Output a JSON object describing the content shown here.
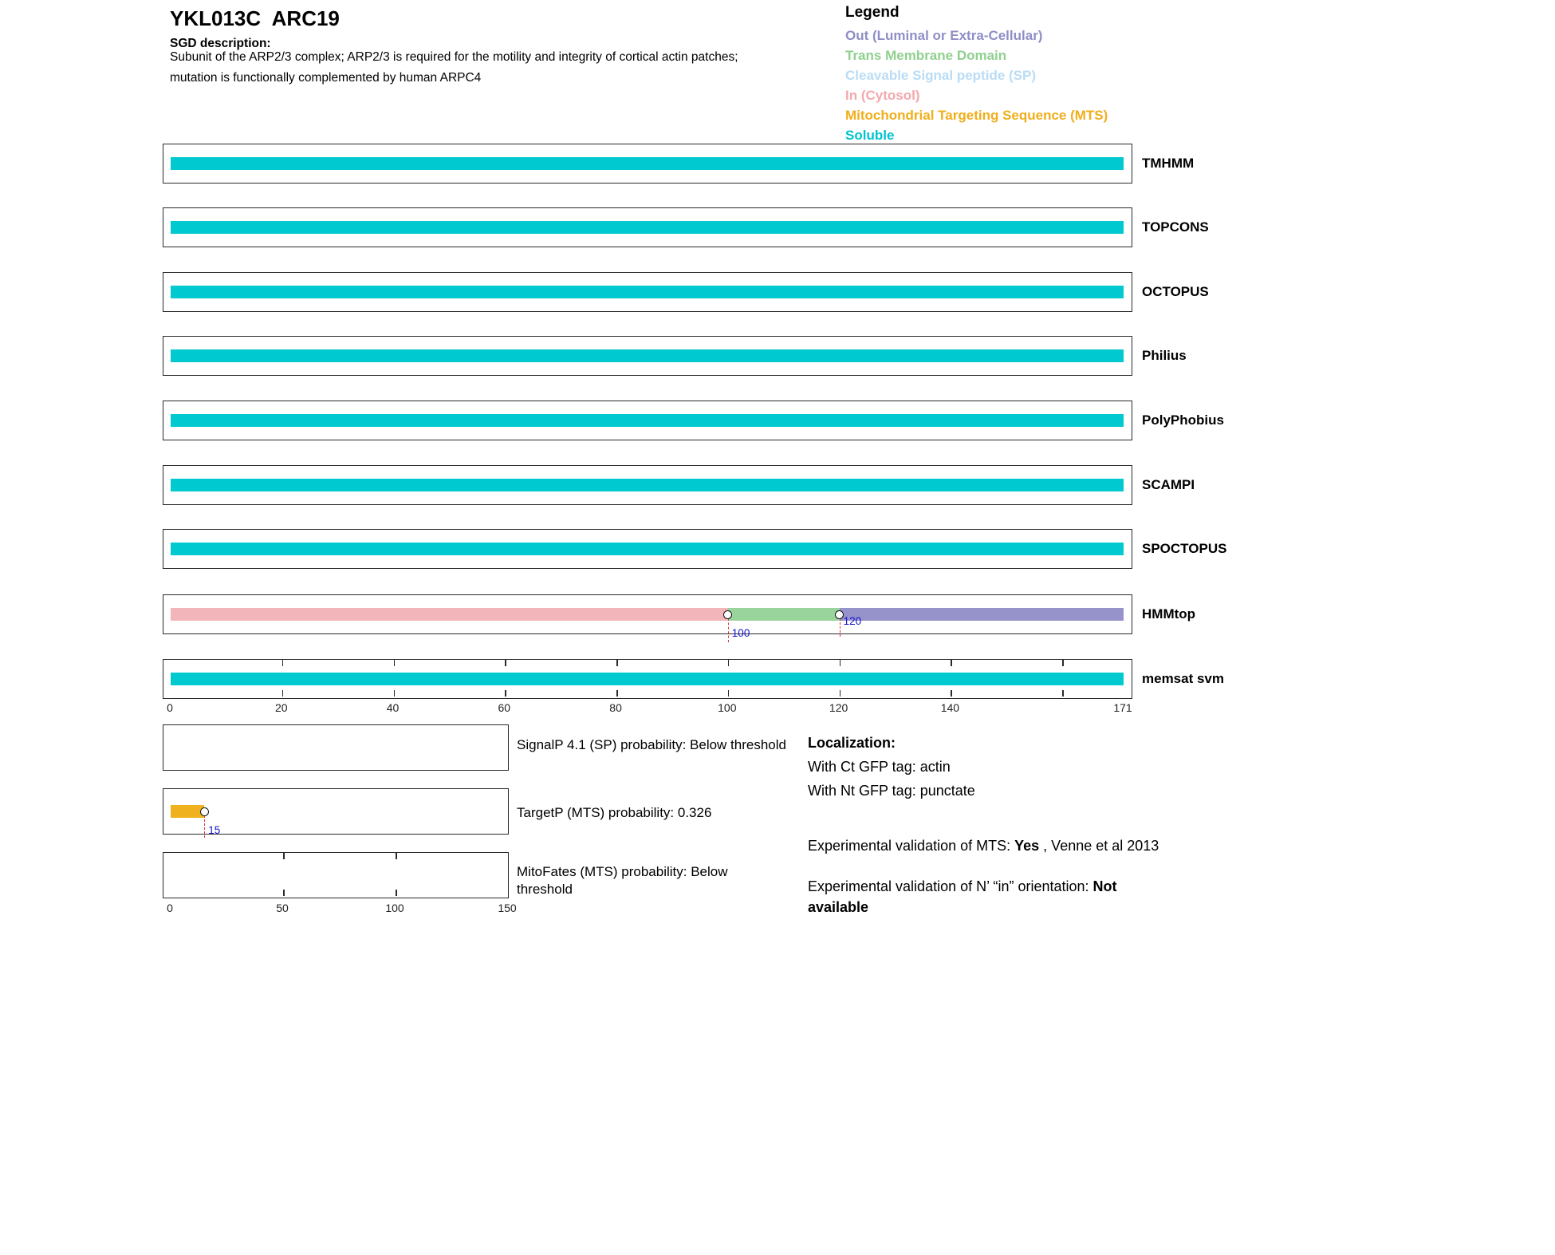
{
  "header": {
    "title": "YKL013C  ARC19",
    "sgd_label": "SGD description:",
    "sgd_line1": "Subunit of the ARP2/3 complex; ARP2/3 is required for the motility and integrity of cortical actin patches;",
    "sgd_line2": "mutation is functionally complemented by human ARPC4"
  },
  "legend": {
    "title": "Legend",
    "items": [
      {
        "key": "out",
        "label": "Out (Luminal or Extra-Cellular)",
        "color": "#8f8ec6"
      },
      {
        "key": "tm",
        "label": "Trans Membrane Domain",
        "color": "#8fd08f"
      },
      {
        "key": "sp",
        "label": "Cleavable Signal peptide (SP)",
        "color": "#badcf5"
      },
      {
        "key": "in",
        "label": "In (Cytosol)",
        "color": "#f2a9ad"
      },
      {
        "key": "mts",
        "label": "Mitochondrial Targeting Sequence (MTS)",
        "color": "#f0ae1b"
      },
      {
        "key": "soluble",
        "label": "Soluble",
        "color": "#00c4cf"
      }
    ]
  },
  "colors": {
    "out": "#9593ca",
    "tm": "#98d49c",
    "sp": "#badcf5",
    "in": "#f2b6ba",
    "mts": "#f0b11f",
    "soluble": "#00c9d0",
    "box_border": "#2a2a2a",
    "marker_line": "#e8323c",
    "marker_label": "#1414cd"
  },
  "chart_data": {
    "type": "bar",
    "title": "Membrane topology and targeting predictions for YKL013C ARC19",
    "x_axis": {
      "unit": "residue",
      "min": 0,
      "max": 171,
      "ticks": [
        0,
        20,
        40,
        60,
        80,
        100,
        120,
        140,
        171
      ]
    },
    "tracks": [
      {
        "name": "TMHMM",
        "segments": [
          {
            "start": 0,
            "end": 171,
            "class": "soluble"
          }
        ]
      },
      {
        "name": "TOPCONS",
        "segments": [
          {
            "start": 0,
            "end": 171,
            "class": "soluble"
          }
        ]
      },
      {
        "name": "OCTOPUS",
        "segments": [
          {
            "start": 0,
            "end": 171,
            "class": "soluble"
          }
        ]
      },
      {
        "name": "Philius",
        "segments": [
          {
            "start": 0,
            "end": 171,
            "class": "soluble"
          }
        ]
      },
      {
        "name": "PolyPhobius",
        "segments": [
          {
            "start": 0,
            "end": 171,
            "class": "soluble"
          }
        ]
      },
      {
        "name": "SCAMPI",
        "segments": [
          {
            "start": 0,
            "end": 171,
            "class": "soluble"
          }
        ]
      },
      {
        "name": "SPOCTOPUS",
        "segments": [
          {
            "start": 0,
            "end": 171,
            "class": "soluble"
          }
        ]
      },
      {
        "name": "HMMtop",
        "segments": [
          {
            "start": 0,
            "end": 100,
            "class": "in"
          },
          {
            "start": 100,
            "end": 120,
            "class": "tm"
          },
          {
            "start": 120,
            "end": 171,
            "class": "out"
          }
        ],
        "markers": [
          {
            "pos": 100,
            "label": "100",
            "line_len": 30,
            "label_dy": 40
          },
          {
            "pos": 120,
            "label": "120",
            "line_len": 23,
            "label_dy": 25
          }
        ]
      },
      {
        "name": "memsat svm",
        "segments": [
          {
            "start": 0,
            "end": 171,
            "class": "soluble"
          }
        ],
        "edge_ticks": [
          20,
          40,
          60,
          80,
          100,
          120,
          140,
          160
        ]
      }
    ],
    "probability_axis": {
      "min": 0,
      "max": 150,
      "ticks": [
        0,
        50,
        100,
        150
      ]
    },
    "probability_panels": [
      {
        "name": "SignalP",
        "label": "SignalP 4.1 (SP) probability: Below threshold",
        "segments": []
      },
      {
        "name": "TargetP",
        "label": "TargetP (MTS) probability: 0.326",
        "segments": [
          {
            "start": 0,
            "end": 15,
            "class": "mts"
          }
        ],
        "markers": [
          {
            "pos": 15,
            "label": "15",
            "line_len": 28,
            "label_dy": 44
          }
        ]
      },
      {
        "name": "MitoFates",
        "label": "MitoFates (MTS) probability: Below threshold",
        "segments": [],
        "edge_ticks": [
          50,
          100
        ]
      }
    ]
  },
  "annotations": {
    "localization_title": "Localization:",
    "ct_tag": "With Ct GFP tag: actin",
    "nt_tag": "With Nt GFP tag: punctate",
    "mts_prefix": "Experimental validation of MTS: ",
    "mts_value": "Yes",
    "mts_suffix": " , Venne et al 2013",
    "orientation_prefix": "Experimental validation of N’ “in” orientation: ",
    "orientation_value": "Not available"
  }
}
